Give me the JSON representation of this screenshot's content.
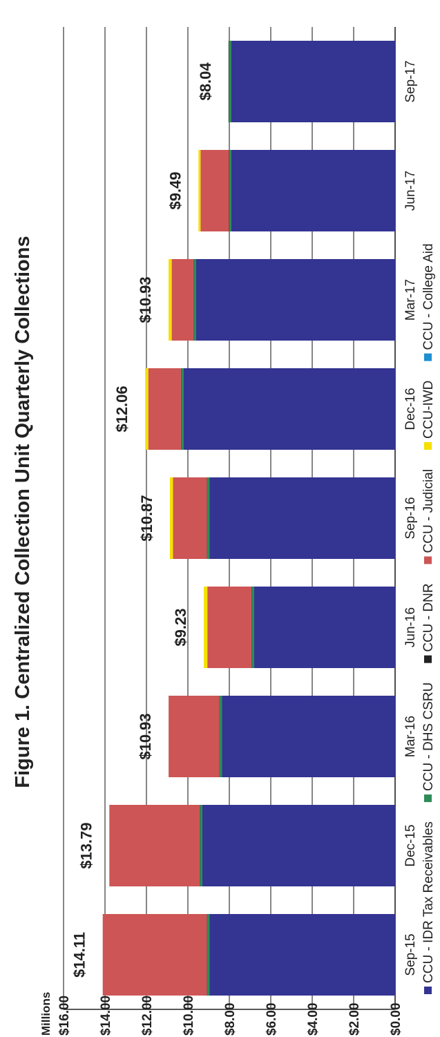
{
  "chart_data": {
    "type": "bar",
    "stacked": true,
    "title": "Figure 1. Centralized Collection Unit Quarterly Collections",
    "unit_label": "Millions",
    "ylim": [
      0,
      16
    ],
    "y_ticks": [
      "$0.00",
      "$2.00",
      "$4.00",
      "$6.00",
      "$8.00",
      "$10.00",
      "$12.00",
      "$14.00",
      "$16.00"
    ],
    "y_tick_values": [
      0,
      2,
      4,
      6,
      8,
      10,
      12,
      14,
      16
    ],
    "grid": true,
    "legend_position": "bottom",
    "categories": [
      "Sep-15",
      "Dec-15",
      "Mar-16",
      "Jun-16",
      "Sep-16",
      "Dec-16",
      "Mar-17",
      "Jun-17",
      "Sep-17"
    ],
    "totals": [
      "$14.11",
      "$13.79",
      "$10.93",
      "$9.23",
      "$10.87",
      "$12.06",
      "$10.93",
      "$9.49",
      "$8.04"
    ],
    "series": [
      {
        "name": "CCU - IDR Tax Receivables",
        "color": "#343493",
        "values": [
          8.95,
          9.3,
          8.35,
          6.8,
          8.95,
          10.2,
          9.6,
          7.9,
          7.9
        ]
      },
      {
        "name": "CCU - DHS CSRU",
        "color": "#2e8b57",
        "values": [
          0.12,
          0.12,
          0.12,
          0.12,
          0.12,
          0.12,
          0.12,
          0.1,
          0.12
        ]
      },
      {
        "name": "CCU - DNR",
        "color": "#222222",
        "values": [
          0.02,
          0.02,
          0.02,
          0.02,
          0.02,
          0.02,
          0.02,
          0.02,
          0.02
        ]
      },
      {
        "name": "CCU - Judicial",
        "color": "#cd5555",
        "values": [
          5.02,
          4.35,
          2.44,
          2.12,
          1.63,
          1.57,
          1.04,
          1.37,
          0.0
        ]
      },
      {
        "name": "CCU-IWD",
        "color": "#f5e000",
        "values": [
          0.0,
          0.0,
          0.0,
          0.17,
          0.15,
          0.15,
          0.15,
          0.1,
          0.0
        ]
      },
      {
        "name": "CCU - College Aid",
        "color": "#1e8fd0",
        "values": [
          0.0,
          0.0,
          0.0,
          0.0,
          0.0,
          0.0,
          0.0,
          0.0,
          0.0
        ]
      }
    ]
  }
}
